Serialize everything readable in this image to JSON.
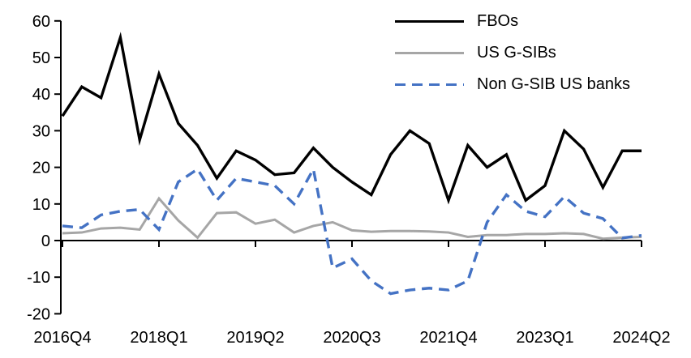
{
  "chart_data": {
    "type": "line",
    "title": "",
    "xlabel": "",
    "ylabel": "",
    "ylim": [
      -20,
      60
    ],
    "y_ticks": [
      60,
      50,
      40,
      30,
      20,
      10,
      0,
      -10,
      -20
    ],
    "grid": "off",
    "background_color": "#FFFFFF",
    "axis_color": "#000000",
    "legend_position": "top-right",
    "x_categories": [
      "2016Q4",
      "2017Q1",
      "2017Q2",
      "2017Q3",
      "2017Q4",
      "2018Q1",
      "2018Q2",
      "2018Q3",
      "2018Q4",
      "2019Q1",
      "2019Q2",
      "2019Q3",
      "2019Q4",
      "2020Q1",
      "2020Q2",
      "2020Q3",
      "2020Q4",
      "2021Q1",
      "2021Q2",
      "2021Q3",
      "2021Q4",
      "2022Q1",
      "2022Q2",
      "2022Q3",
      "2022Q4",
      "2023Q1",
      "2023Q2",
      "2023Q3",
      "2023Q4",
      "2024Q1",
      "2024Q2"
    ],
    "x_tick_labels": [
      "2016Q4",
      "2018Q1",
      "2019Q2",
      "2020Q3",
      "2021Q4",
      "2023Q1",
      "2024Q2"
    ],
    "x_tick_indices": [
      0,
      5,
      10,
      15,
      20,
      25,
      30
    ],
    "series": [
      {
        "name": "FBOs",
        "color": "#000000",
        "style": "solid",
        "values": [
          34,
          42,
          39,
          55.5,
          27.5,
          45.5,
          32,
          26,
          17,
          24.5,
          22,
          18,
          18.5,
          25.3,
          20,
          16,
          12.5,
          23.5,
          30,
          26.5,
          11,
          26,
          20,
          23.5,
          11,
          15,
          30,
          25,
          14.5,
          24.5,
          24.5
        ]
      },
      {
        "name": "US G-SIBs",
        "color": "#A6A6A6",
        "style": "solid",
        "values": [
          2,
          2.2,
          3.3,
          3.5,
          3,
          11.5,
          5.5,
          0.8,
          7.5,
          7.7,
          4.6,
          5.7,
          2.2,
          4,
          5,
          2.8,
          2.4,
          2.6,
          2.6,
          2.5,
          2.2,
          1,
          1.5,
          1.5,
          1.8,
          1.8,
          2,
          1.8,
          0.5,
          0.8,
          1
        ]
      },
      {
        "name": "Non G-SIB US banks",
        "color": "#4472C4",
        "style": "dashed",
        "values": [
          4,
          3.5,
          7,
          8,
          8.5,
          3,
          16,
          19.5,
          11,
          17,
          16,
          15,
          10,
          19.5,
          -7.5,
          -5,
          -11,
          -14.5,
          -13.5,
          -13,
          -13.5,
          -11,
          5,
          12.5,
          8,
          6.5,
          12,
          7.5,
          6,
          0.7,
          1.4
        ]
      }
    ]
  }
}
